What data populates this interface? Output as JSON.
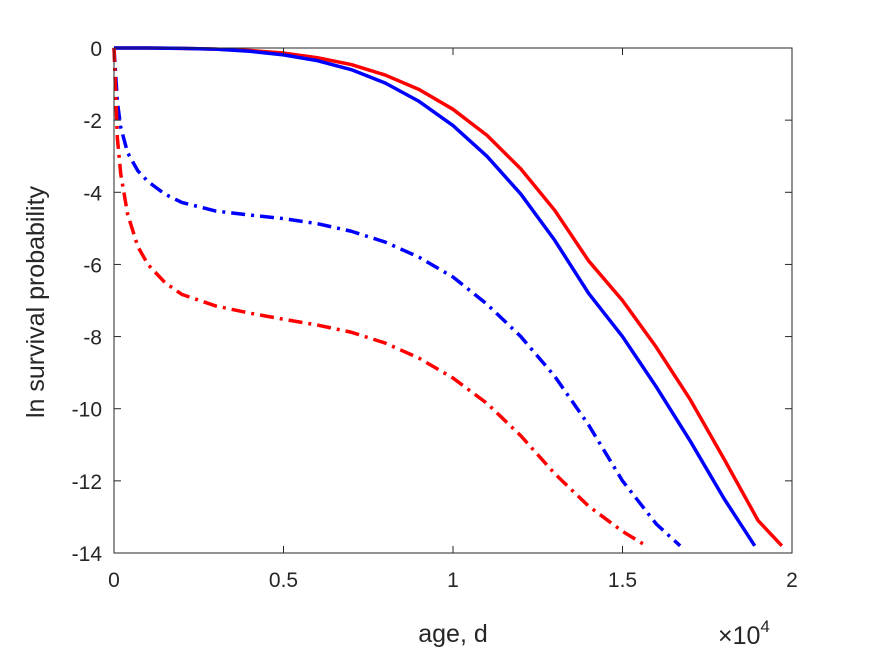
{
  "chart_data": {
    "type": "line",
    "title": "",
    "xlabel": "age, d",
    "ylabel": "ln survival probability",
    "x_exponent": {
      "base": "×10",
      "power": "4"
    },
    "xlim": [
      0,
      20000
    ],
    "ylim": [
      -14,
      0
    ],
    "xticks": [
      0,
      5000,
      10000,
      15000,
      20000
    ],
    "xtick_labels": [
      "0",
      "0.5",
      "1",
      "1.5",
      "2"
    ],
    "yticks": [
      0,
      -2,
      -4,
      -6,
      -8,
      -10,
      -12,
      -14
    ],
    "ytick_labels": [
      "0",
      "-2",
      "-4",
      "-6",
      "-8",
      "-10",
      "-12",
      "-14"
    ],
    "grid": false,
    "box": true,
    "series": [
      {
        "color": "#ff0000",
        "style": "solid",
        "x": [
          0,
          1000,
          2000,
          3000,
          4000,
          5000,
          6000,
          7000,
          8000,
          9000,
          10000,
          11000,
          12000,
          13000,
          14000,
          15000,
          16000,
          17000,
          18000,
          19000,
          19700
        ],
        "y": [
          0,
          0,
          -0.01,
          -0.03,
          -0.07,
          -0.14,
          -0.27,
          -0.46,
          -0.75,
          -1.15,
          -1.7,
          -2.42,
          -3.35,
          -4.5,
          -5.9,
          -7.0,
          -8.3,
          -9.75,
          -11.4,
          -13.1,
          -13.8
        ]
      },
      {
        "color": "#0000ff",
        "style": "solid",
        "x": [
          0,
          1000,
          2000,
          3000,
          4000,
          5000,
          6000,
          7000,
          8000,
          9000,
          10000,
          11000,
          12000,
          13000,
          14000,
          15000,
          16000,
          17000,
          18000,
          18900
        ],
        "y": [
          0,
          0,
          -0.01,
          -0.03,
          -0.09,
          -0.19,
          -0.35,
          -0.6,
          -0.97,
          -1.48,
          -2.15,
          -3.0,
          -4.05,
          -5.33,
          -6.8,
          -8.0,
          -9.4,
          -10.9,
          -12.5,
          -13.8
        ]
      },
      {
        "color": "#0000ff",
        "style": "dashdot",
        "x": [
          0,
          100,
          200,
          400,
          700,
          1000,
          1500,
          2000,
          3000,
          4000,
          5000,
          6000,
          7000,
          8000,
          9000,
          10000,
          11000,
          12000,
          13000,
          14000,
          15000,
          16000,
          16700
        ],
        "y": [
          0,
          -1.5,
          -2.2,
          -2.9,
          -3.4,
          -3.7,
          -4.05,
          -4.28,
          -4.52,
          -4.63,
          -4.73,
          -4.87,
          -5.08,
          -5.38,
          -5.8,
          -6.35,
          -7.1,
          -8.0,
          -9.1,
          -10.45,
          -12.0,
          -13.2,
          -13.8
        ]
      },
      {
        "color": "#ff0000",
        "style": "dashdot",
        "x": [
          0,
          100,
          200,
          400,
          700,
          1000,
          1500,
          2000,
          3000,
          4000,
          5000,
          6000,
          7000,
          8000,
          9000,
          10000,
          11000,
          12000,
          13000,
          14000,
          15000,
          15700
        ],
        "y": [
          0,
          -2.5,
          -3.5,
          -4.6,
          -5.5,
          -6.0,
          -6.5,
          -6.83,
          -7.15,
          -7.35,
          -7.52,
          -7.68,
          -7.88,
          -8.18,
          -8.6,
          -9.15,
          -9.85,
          -10.75,
          -11.8,
          -12.7,
          -13.4,
          -13.8
        ]
      }
    ]
  }
}
